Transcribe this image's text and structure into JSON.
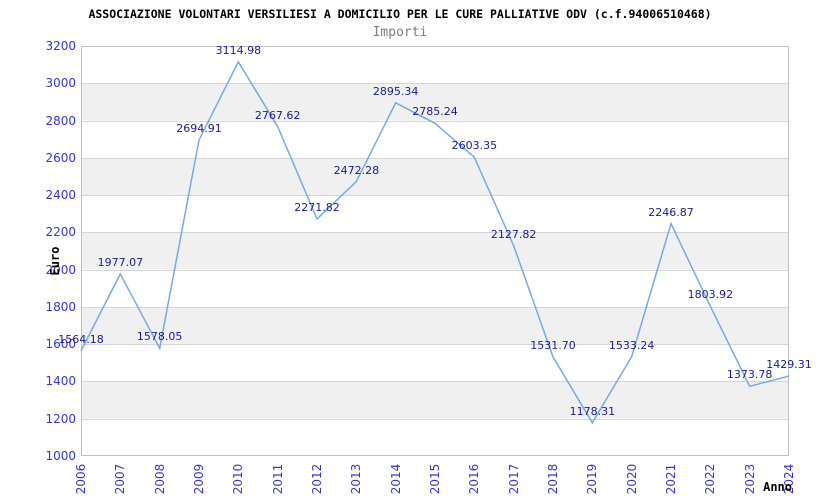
{
  "title": "ASSOCIAZIONE VOLONTARI VERSILIESI A DOMICILIO PER LE CURE PALLIATIVE ODV (c.f.94006510468)",
  "subtitle": "Importi",
  "chart_data": {
    "type": "line",
    "title": "Importi",
    "xlabel": "Anno",
    "ylabel": "Euro",
    "categories": [
      "2006",
      "2007",
      "2008",
      "2009",
      "2010",
      "2011",
      "2012",
      "2013",
      "2014",
      "2015",
      "2016",
      "2017",
      "2018",
      "2019",
      "2020",
      "2021",
      "2022",
      "2023",
      "2024"
    ],
    "series": [
      {
        "name": "Importi",
        "values": [
          1564.18,
          1977.07,
          1578.05,
          2694.91,
          3114.98,
          2767.62,
          2271.82,
          2472.28,
          2895.34,
          2785.24,
          2603.35,
          2127.82,
          1531.7,
          1178.31,
          1533.24,
          2246.87,
          1803.92,
          1373.78,
          1429.31
        ]
      }
    ],
    "point_labels": [
      "1564.18",
      "1977.07",
      "1578.05",
      "2694.91",
      "3114.98",
      "2767.62",
      "2271.82",
      "2472.28",
      "2895.34",
      "2785.24",
      "2603.35",
      "2127.82",
      "1531.70",
      "1178.31",
      "1533.24",
      "2246.87",
      "1803.92",
      "1373.78",
      "1429.31"
    ],
    "ylim": [
      1000,
      3200
    ],
    "ytick_step": 200,
    "grid": true,
    "banded_background": true,
    "legend_position": "none"
  },
  "colors": {
    "title": "#000000",
    "subtitle": "#7d7d7d",
    "tick_label": "#3535d8",
    "data_label": "#1b1b96",
    "line": "#78aae1",
    "band": "#f0f0f0",
    "gridline": "#d6d6d6",
    "plot_border": "#c0c0c0",
    "background": "#ffffff"
  }
}
